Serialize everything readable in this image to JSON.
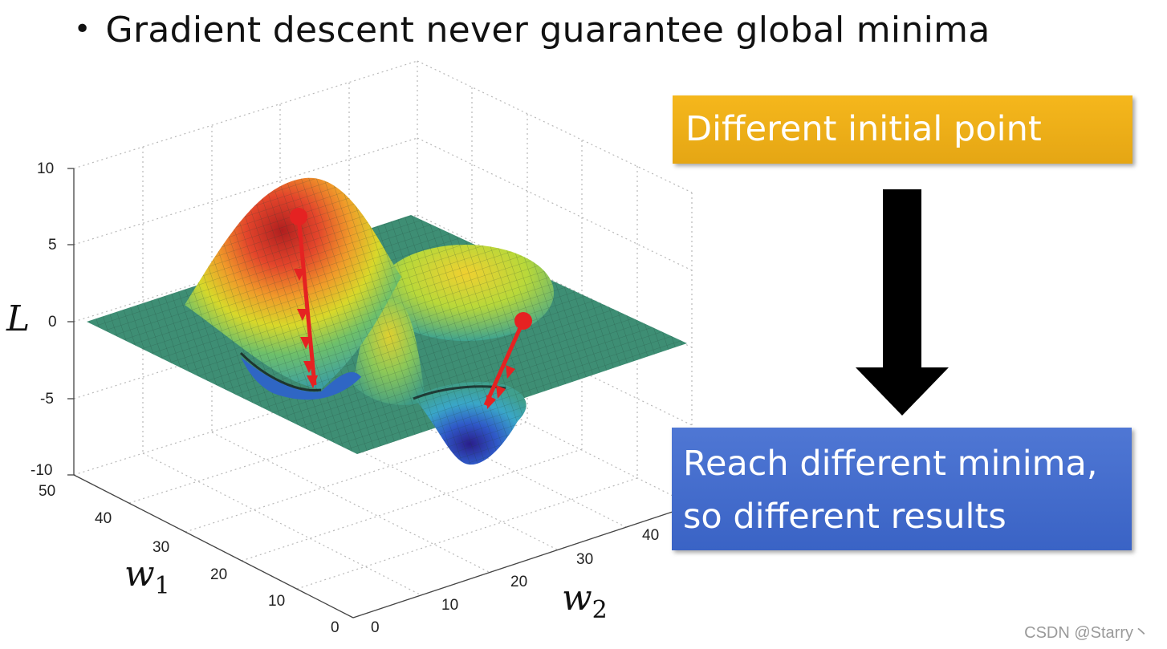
{
  "headline": "Gradient descent never guarantee global minima",
  "boxes": {
    "top": "Different initial point",
    "bottom_line1": "Reach different minima,",
    "bottom_line2": "so different results"
  },
  "axes": {
    "z_var": "L",
    "w1_var": "w",
    "w1_sub": "1",
    "w2_var": "w",
    "w2_sub": "2",
    "z_ticks": [
      "10",
      "5",
      "0",
      "-5",
      "-10"
    ],
    "w1_ticks": [
      "50",
      "40",
      "30",
      "20",
      "10",
      "0"
    ],
    "w2_ticks": [
      "0",
      "10",
      "20",
      "30",
      "40"
    ]
  },
  "watermark": "CSDN @Starry丶",
  "colors": {
    "top_box": "#f0b11a",
    "bottom_box": "#4470cf",
    "path": "#e52222",
    "surface_flat": "#3d8a72"
  }
}
